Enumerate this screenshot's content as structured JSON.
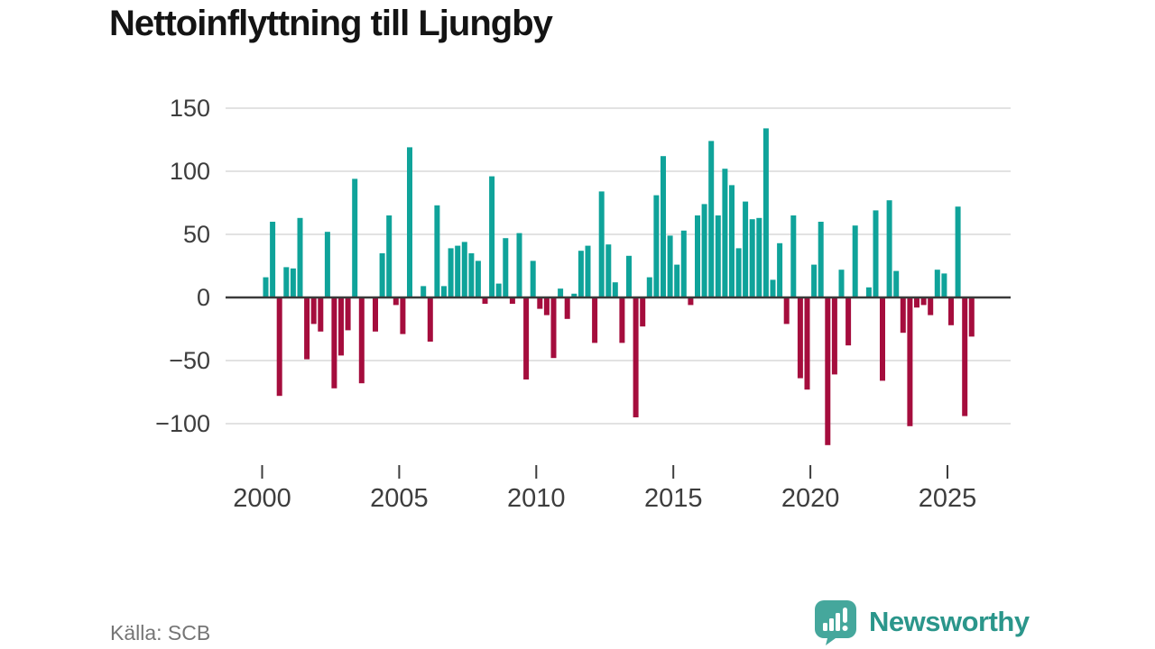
{
  "title": "Nettoinflyttning till Ljungby",
  "source": "Källa: SCB",
  "logo": {
    "text": "Newsworthy"
  },
  "chart_data": {
    "type": "bar",
    "title": "Nettoinflyttning till Ljungby",
    "xlabel": "",
    "ylabel": "",
    "frequency": "quarterly",
    "x_start": "2000-Q1",
    "x_end": "2025-Q4",
    "values": [
      16,
      60,
      -78,
      24,
      23,
      63,
      -49,
      -21,
      -27,
      52,
      -72,
      -46,
      -26,
      94,
      -68,
      0,
      -27,
      35,
      65,
      -6,
      -29,
      119,
      0,
      9,
      -35,
      73,
      9,
      39,
      41,
      44,
      35,
      29,
      -5,
      96,
      11,
      47,
      -5,
      51,
      -65,
      29,
      -9,
      -14,
      -48,
      7,
      -17,
      3,
      37,
      41,
      -36,
      84,
      42,
      12,
      -36,
      33,
      -95,
      -23,
      16,
      81,
      112,
      49,
      26,
      53,
      -6,
      65,
      74,
      124,
      65,
      102,
      89,
      39,
      76,
      62,
      63,
      134,
      14,
      43,
      -21,
      65,
      -64,
      -73,
      26,
      60,
      -117,
      -61,
      22,
      -38,
      57,
      0,
      8,
      69,
      -66,
      77,
      21,
      -28,
      -102,
      -8,
      -6,
      -14,
      22,
      19,
      -22,
      72,
      -94,
      -31
    ],
    "y_ticks": [
      150,
      100,
      50,
      0,
      -50,
      -100
    ],
    "y_tick_labels": [
      "150",
      "100",
      "50",
      "0",
      "−50",
      "−100"
    ],
    "x_ticks": [
      2000,
      2005,
      2010,
      2015,
      2020,
      2025
    ],
    "x_tick_labels": [
      "2000",
      "2005",
      "2010",
      "2015",
      "2020",
      "2025"
    ],
    "ylim": [
      -125,
      155
    ],
    "grid": true,
    "legend": "none",
    "positive_color": "#0FA39A",
    "negative_color": "#A50D3D",
    "zero_line_color": "#3A3A3A",
    "grid_color": "#E2E2E2",
    "axis_text_color": "#3D3D3D"
  }
}
